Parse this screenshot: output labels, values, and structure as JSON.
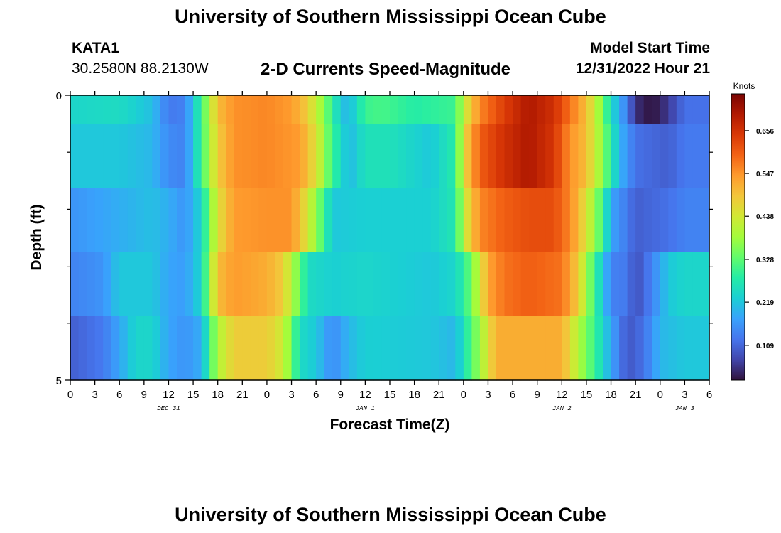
{
  "header": {
    "title": "University of Southern Mississippi Ocean Cube",
    "station": "KATA1",
    "coords": "30.2580N  88.2130W",
    "subtitle": "2-D Currents Speed-Magnitude",
    "start_label": "Model Start Time",
    "start_value": "12/31/2022 Hour 21"
  },
  "footer": {
    "title": "University of Southern Mississippi Ocean Cube"
  },
  "colors": {
    "colormap": [
      "#30123b",
      "#4145ab",
      "#4675ed",
      "#39a2fc",
      "#1bcfd4",
      "#24eca6",
      "#61fc6c",
      "#a4fc3b",
      "#d1e834",
      "#f3c63a",
      "#fe9b2d",
      "#f36315",
      "#d93806",
      "#b11901",
      "#7a0403"
    ]
  },
  "chart_data": {
    "type": "heatmap",
    "xlabel": "Forecast Time(Z)",
    "ylabel": "Depth (ft)",
    "x_tick_labels": [
      "0",
      "3",
      "6",
      "9",
      "12",
      "15",
      "18",
      "21",
      "0",
      "3",
      "6",
      "9",
      "12",
      "15",
      "18",
      "21",
      "0",
      "3",
      "6",
      "9",
      "12",
      "15",
      "18",
      "21",
      "0",
      "3",
      "6"
    ],
    "day_labels": [
      {
        "label": "DEC 31",
        "at_tick": 4
      },
      {
        "label": "JAN 1",
        "at_tick": 12
      },
      {
        "label": "JAN 2",
        "at_tick": 20
      },
      {
        "label": "JAN 3",
        "at_tick": 25
      }
    ],
    "y_tick_labels": [
      {
        "label": "0",
        "depth": 0
      },
      {
        "label": "5",
        "depth": 5
      }
    ],
    "y_minor_ticks": [
      1,
      2,
      3,
      4
    ],
    "ylim": [
      0,
      5
    ],
    "x_hours_total": 78,
    "depth_rows": 5,
    "colorbar": {
      "unit": "Knots",
      "ticks": [
        0.109,
        0.219,
        0.328,
        0.438,
        0.547,
        0.656
      ],
      "range": [
        0.02,
        0.75
      ]
    },
    "profiles": [
      [
        [
          0,
          0.24
        ],
        [
          6,
          0.25
        ],
        [
          10,
          0.21
        ],
        [
          12,
          0.13
        ],
        [
          14,
          0.14
        ],
        [
          16,
          0.3
        ],
        [
          18,
          0.5
        ],
        [
          20,
          0.55
        ],
        [
          24,
          0.56
        ],
        [
          27,
          0.54
        ],
        [
          29,
          0.48
        ],
        [
          31,
          0.36
        ],
        [
          33,
          0.22
        ],
        [
          34,
          0.2
        ],
        [
          36,
          0.3
        ],
        [
          38,
          0.31
        ],
        [
          42,
          0.28
        ],
        [
          47,
          0.3
        ],
        [
          48,
          0.42
        ],
        [
          50,
          0.56
        ],
        [
          53,
          0.64
        ],
        [
          56,
          0.7
        ],
        [
          59,
          0.66
        ],
        [
          61,
          0.58
        ],
        [
          63,
          0.5
        ],
        [
          64,
          0.43
        ],
        [
          66,
          0.25
        ],
        [
          68,
          0.13
        ],
        [
          69,
          0.05
        ],
        [
          71,
          0.02
        ],
        [
          73,
          0.06
        ],
        [
          75,
          0.12
        ],
        [
          78,
          0.12
        ]
      ],
      [
        [
          0,
          0.22
        ],
        [
          6,
          0.22
        ],
        [
          10,
          0.2
        ],
        [
          12,
          0.15
        ],
        [
          14,
          0.14
        ],
        [
          16,
          0.3
        ],
        [
          18,
          0.48
        ],
        [
          20,
          0.55
        ],
        [
          24,
          0.56
        ],
        [
          28,
          0.54
        ],
        [
          30,
          0.45
        ],
        [
          32,
          0.3
        ],
        [
          34,
          0.2
        ],
        [
          36,
          0.26
        ],
        [
          39,
          0.26
        ],
        [
          44,
          0.22
        ],
        [
          47,
          0.28
        ],
        [
          48,
          0.46
        ],
        [
          50,
          0.6
        ],
        [
          53,
          0.66
        ],
        [
          56,
          0.7
        ],
        [
          59,
          0.65
        ],
        [
          61,
          0.55
        ],
        [
          63,
          0.5
        ],
        [
          65,
          0.36
        ],
        [
          67,
          0.2
        ],
        [
          69,
          0.12
        ],
        [
          73,
          0.1
        ],
        [
          75,
          0.13
        ],
        [
          78,
          0.13
        ]
      ],
      [
        [
          0,
          0.16
        ],
        [
          6,
          0.19
        ],
        [
          10,
          0.21
        ],
        [
          12,
          0.19
        ],
        [
          14,
          0.16
        ],
        [
          16,
          0.24
        ],
        [
          18,
          0.45
        ],
        [
          20,
          0.54
        ],
        [
          24,
          0.55
        ],
        [
          27,
          0.55
        ],
        [
          29,
          0.44
        ],
        [
          31,
          0.3
        ],
        [
          32,
          0.22
        ],
        [
          36,
          0.23
        ],
        [
          44,
          0.23
        ],
        [
          47,
          0.27
        ],
        [
          48,
          0.42
        ],
        [
          50,
          0.56
        ],
        [
          53,
          0.6
        ],
        [
          56,
          0.62
        ],
        [
          59,
          0.62
        ],
        [
          61,
          0.56
        ],
        [
          63,
          0.45
        ],
        [
          65,
          0.3
        ],
        [
          66,
          0.18
        ],
        [
          68,
          0.13
        ],
        [
          69,
          0.1
        ],
        [
          73,
          0.12
        ],
        [
          75,
          0.14
        ],
        [
          78,
          0.14
        ]
      ],
      [
        [
          0,
          0.14
        ],
        [
          4,
          0.16
        ],
        [
          6,
          0.22
        ],
        [
          10,
          0.22
        ],
        [
          12,
          0.18
        ],
        [
          14,
          0.17
        ],
        [
          16,
          0.24
        ],
        [
          18,
          0.5
        ],
        [
          20,
          0.54
        ],
        [
          24,
          0.52
        ],
        [
          26,
          0.48
        ],
        [
          28,
          0.33
        ],
        [
          29,
          0.25
        ],
        [
          32,
          0.23
        ],
        [
          36,
          0.24
        ],
        [
          44,
          0.22
        ],
        [
          47,
          0.24
        ],
        [
          49,
          0.34
        ],
        [
          51,
          0.53
        ],
        [
          53,
          0.58
        ],
        [
          56,
          0.6
        ],
        [
          60,
          0.58
        ],
        [
          62,
          0.48
        ],
        [
          64,
          0.3
        ],
        [
          66,
          0.14
        ],
        [
          68,
          0.13
        ],
        [
          69,
          0.08
        ],
        [
          71,
          0.14
        ],
        [
          73,
          0.22
        ],
        [
          75,
          0.24
        ],
        [
          78,
          0.24
        ]
      ],
      [
        [
          0,
          0.1
        ],
        [
          4,
          0.13
        ],
        [
          6,
          0.18
        ],
        [
          8,
          0.24
        ],
        [
          10,
          0.24
        ],
        [
          12,
          0.18
        ],
        [
          14,
          0.16
        ],
        [
          16,
          0.19
        ],
        [
          18,
          0.4
        ],
        [
          20,
          0.48
        ],
        [
          24,
          0.48
        ],
        [
          26,
          0.43
        ],
        [
          28,
          0.25
        ],
        [
          30,
          0.22
        ],
        [
          32,
          0.15
        ],
        [
          34,
          0.2
        ],
        [
          36,
          0.23
        ],
        [
          44,
          0.22
        ],
        [
          47,
          0.2
        ],
        [
          50,
          0.38
        ],
        [
          52,
          0.52
        ],
        [
          56,
          0.52
        ],
        [
          60,
          0.52
        ],
        [
          62,
          0.4
        ],
        [
          64,
          0.3
        ],
        [
          66,
          0.18
        ],
        [
          68,
          0.09
        ],
        [
          70,
          0.12
        ],
        [
          72,
          0.2
        ],
        [
          75,
          0.22
        ],
        [
          78,
          0.22
        ]
      ]
    ]
  }
}
